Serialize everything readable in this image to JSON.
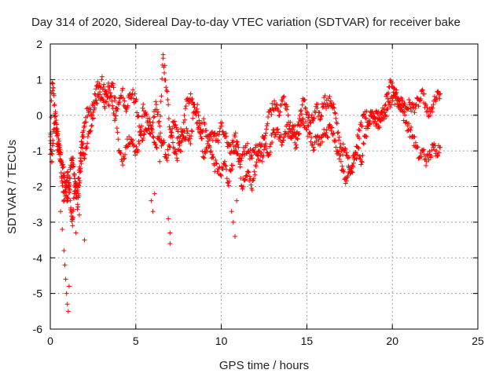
{
  "chart_data": {
    "type": "scatter",
    "title": "Day 314 of 2020, Sidereal Day-to-day VTEC variation (SDTVAR) for receiver bake",
    "xlabel": "GPS time / hours",
    "ylabel": "SDTVAR / TECUs",
    "xlim": [
      0,
      25
    ],
    "ylim": [
      -6,
      2
    ],
    "xticks": [
      "0",
      "5",
      "10",
      "15",
      "20",
      "25"
    ],
    "yticks": [
      "-6",
      "-5",
      "-4",
      "-3",
      "-2",
      "-1",
      "0",
      "1",
      "2"
    ],
    "grid": true,
    "marker": "+",
    "series": [
      {
        "name": "SDTVAR",
        "color": "#ff0000",
        "tracks": [
          {
            "x": [
              0.0,
              0.1,
              0.2,
              0.3,
              0.4,
              0.5,
              0.6,
              0.7,
              0.8,
              0.9,
              1.0,
              1.1,
              1.2,
              1.3,
              1.4,
              1.5,
              1.6,
              1.7,
              1.8,
              1.9,
              2.0,
              2.2,
              2.4,
              2.6,
              2.8,
              3.0,
              3.2,
              3.4,
              3.6,
              3.8,
              4.0,
              4.2,
              4.4,
              4.6,
              4.8,
              5.0,
              5.2,
              5.4,
              5.6,
              5.8,
              6.0,
              6.2,
              6.4,
              6.6,
              6.8,
              7.0,
              7.2,
              7.4,
              7.6,
              7.8,
              8.0,
              8.2,
              8.4,
              8.6,
              8.8,
              9.0,
              9.2,
              9.4,
              9.6,
              9.8,
              10.0,
              10.2,
              10.4,
              10.6,
              10.8,
              11.0,
              11.2,
              11.4,
              11.6,
              11.8,
              12.0,
              12.2,
              12.4,
              12.6,
              12.8,
              13.0,
              13.2,
              13.4,
              13.6,
              13.8,
              14.0,
              14.2,
              14.4,
              14.6,
              14.8,
              15.0,
              15.2,
              15.4,
              15.6,
              15.8,
              16.0,
              16.2,
              16.4,
              16.6,
              16.8,
              17.0,
              17.2,
              17.4,
              17.6,
              17.8,
              18.0,
              18.2,
              18.4,
              18.6,
              18.8,
              19.0,
              19.2,
              19.4,
              19.6,
              19.8,
              20.0,
              20.2,
              20.4,
              20.6,
              20.8,
              21.0,
              21.2,
              21.4,
              21.6,
              21.8,
              22.0,
              22.2,
              22.4,
              22.6,
              22.8
            ],
            "y": [
              -1.1,
              0.9,
              0.6,
              -0.2,
              -0.8,
              -1.0,
              -1.3,
              -1.9,
              -2.4,
              -2.1,
              -1.6,
              -1.9,
              -2.6,
              -2.9,
              -2.2,
              -1.9,
              -2.1,
              -1.6,
              -0.9,
              -0.6,
              -0.3,
              0.2,
              0.0,
              0.6,
              0.8,
              0.5,
              0.2,
              0.9,
              0.4,
              -0.1,
              0.3,
              0.7,
              0.2,
              0.5,
              0.6,
              0.4,
              -0.3,
              -0.7,
              -0.4,
              -0.1,
              -0.6,
              -0.9,
              -0.6,
              -0.8,
              -1.2,
              -0.9,
              -0.2,
              -0.4,
              -1.0,
              -0.6,
              -0.5,
              -0.8,
              0.1,
              0.3,
              -0.6,
              -1.2,
              -0.8,
              -1.0,
              -1.4,
              -1.5,
              -1.7,
              -1.3,
              -1.9,
              -1.4,
              -1.0,
              -1.3,
              -1.2,
              -0.9,
              -1.0,
              -1.2,
              -0.9,
              -1.0,
              -0.6,
              -0.8,
              -1.1,
              -0.5,
              -0.4,
              -0.6,
              -0.7,
              -0.3,
              -0.6,
              -0.4,
              -0.5,
              0.0,
              0.4,
              0.1,
              -0.2,
              -0.1,
              0.2,
              -0.1,
              0.5,
              0.3,
              0.4,
              0.2,
              -0.5,
              -0.9,
              -1.0,
              -1.2,
              -1.6,
              -1.2,
              -0.9,
              -1.3,
              -0.6,
              -0.3,
              0.1,
              -0.1,
              -0.3,
              0.1,
              0.0,
              0.3,
              0.4,
              0.5,
              0.3,
              0.4,
              0.2,
              0.3,
              0.2,
              0.3,
              0.4,
              0.6,
              0.1,
              0.0,
              0.3,
              0.5,
              0.6
            ]
          },
          {
            "x": [
              0.0,
              0.1,
              0.2,
              0.3,
              0.4,
              0.5,
              0.6,
              0.7,
              0.8,
              0.9,
              1.0,
              1.1,
              1.2,
              1.3,
              1.4,
              1.5,
              1.6,
              1.7,
              1.8,
              1.9,
              2.0,
              2.2,
              2.4,
              2.6,
              2.8,
              3.0,
              3.2,
              3.4,
              3.6,
              3.8,
              4.0,
              4.2,
              4.4,
              4.6,
              4.8,
              5.0,
              5.2,
              5.4,
              5.6,
              5.8,
              6.0,
              6.2,
              6.4,
              6.6,
              6.8,
              7.0,
              7.2,
              7.4,
              7.6,
              7.8,
              8.0,
              8.2,
              8.4,
              8.6,
              8.8,
              9.0,
              9.2,
              9.4,
              9.6,
              9.8,
              10.0,
              10.2,
              10.4,
              10.6,
              10.8,
              11.0,
              11.2,
              11.4,
              11.6,
              11.8,
              12.0,
              12.2,
              12.4,
              12.6,
              12.8,
              13.0,
              13.2,
              13.4,
              13.6,
              13.8,
              14.0,
              14.2,
              14.4,
              14.6,
              14.8,
              15.0,
              15.2,
              15.4,
              15.6,
              15.8,
              16.0,
              16.2,
              16.4,
              16.6,
              16.8,
              17.0,
              17.2,
              17.4,
              17.6,
              17.8,
              18.0,
              18.2,
              18.4,
              18.6,
              18.8,
              19.0,
              19.2,
              19.4,
              19.6,
              19.8,
              20.0,
              20.2,
              20.4,
              20.6,
              20.8,
              21.0,
              21.2,
              21.4,
              21.6,
              21.8,
              22.0,
              22.2,
              22.4,
              22.6,
              22.8
            ],
            "y": [
              -0.6,
              -1.3,
              -0.4,
              0.1,
              -0.4,
              -0.8,
              -1.1,
              -1.4,
              -1.7,
              -2.1,
              -2.3,
              -2.0,
              -1.4,
              -1.2,
              -1.7,
              -2.3,
              -2.5,
              -1.9,
              -1.3,
              -0.8,
              -1.2,
              -0.6,
              -0.3,
              0.2,
              0.6,
              1.0,
              0.7,
              0.3,
              0.9,
              0.5,
              -1.0,
              -1.3,
              -0.9,
              -0.6,
              -0.8,
              -1.0,
              -0.8,
              0.2,
              0.0,
              -0.5,
              -0.2,
              0.3,
              -0.3,
              1.6,
              0.7,
              -0.4,
              -0.9,
              -1.2,
              -0.6,
              -0.2,
              0.4,
              0.6,
              0.3,
              -0.2,
              -0.4,
              -0.2,
              -0.8,
              -0.6,
              -0.5,
              -0.7,
              -0.3,
              -0.6,
              -0.8,
              -1.0,
              -0.6,
              -0.9,
              -2.0,
              -1.8,
              -1.6,
              -2.1,
              -1.4,
              -1.0,
              -1.3,
              -0.5,
              0.1,
              0.2,
              0.3,
              0.0,
              0.5,
              0.3,
              -0.3,
              -0.6,
              -0.9,
              -0.3,
              -0.1,
              -0.4,
              -0.5,
              -0.9,
              -0.6,
              -0.8,
              -0.4,
              -0.6,
              -0.3,
              -0.7,
              -1.0,
              -1.3,
              -1.8,
              -1.7,
              -1.5,
              -1.1,
              -0.6,
              -0.3,
              0.1,
              -0.2,
              0.0,
              -0.1,
              0.1,
              -0.1,
              0.3,
              0.8,
              0.9,
              0.6,
              0.4,
              0.1,
              -0.2,
              -0.4,
              -0.6,
              -0.9,
              -1.2,
              -1.0,
              -1.3,
              -1.1,
              -0.9,
              -1.0,
              -0.9
            ]
          },
          {
            "x": [
              0.6,
              0.7,
              0.8,
              0.85,
              0.9,
              0.95,
              1.0,
              1.05,
              1.1
            ],
            "y": [
              -2.7,
              -3.2,
              -3.8,
              -4.2,
              -4.6,
              -5.0,
              -5.3,
              -5.5,
              -4.8
            ]
          },
          {
            "x": [
              1.3,
              1.5,
              1.7,
              2.0,
              5.9,
              6.0,
              6.1,
              6.4,
              6.5,
              6.6,
              6.7,
              6.9,
              7.0,
              7.0,
              10.6,
              10.7,
              10.8,
              10.9
            ],
            "y": [
              -3.1,
              -3.3,
              -2.8,
              -3.5,
              -2.4,
              -2.7,
              -2.2,
              -1.3,
              -0.7,
              1.7,
              1.4,
              -2.9,
              -3.3,
              -3.6,
              -2.7,
              -3.0,
              -3.4,
              -2.4
            ]
          }
        ]
      }
    ]
  }
}
